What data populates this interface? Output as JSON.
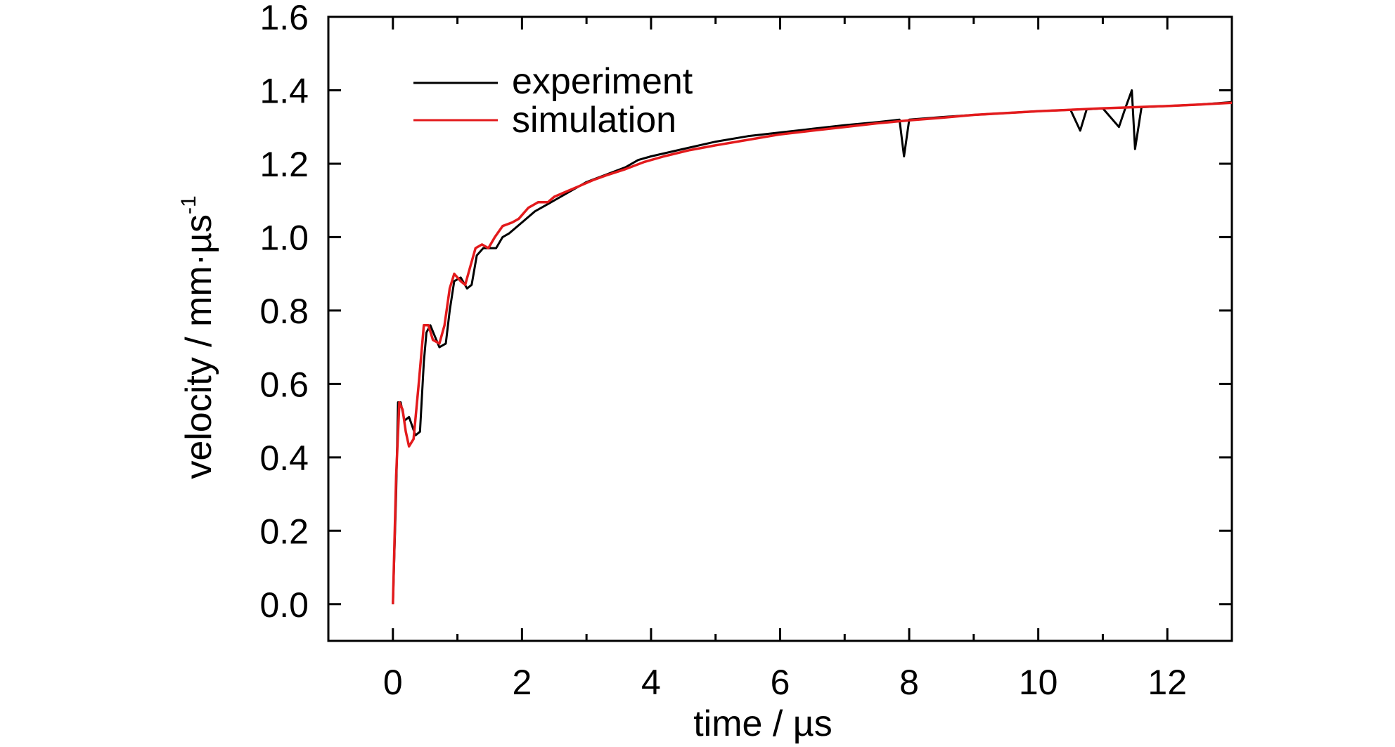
{
  "chart_data": {
    "type": "line",
    "xlabel": "time / µs",
    "ylabel": "velocity / mm·µs",
    "ylabel_superscript": "-1",
    "xlim": [
      -1,
      13
    ],
    "ylim": [
      -0.1,
      1.6
    ],
    "x_ticks": [
      0,
      2,
      4,
      6,
      8,
      10,
      12
    ],
    "x_tick_labels": [
      "0",
      "2",
      "4",
      "6",
      "8",
      "10",
      "12"
    ],
    "y_ticks": [
      0.0,
      0.2,
      0.4,
      0.6,
      0.8,
      1.0,
      1.2,
      1.4,
      1.6
    ],
    "y_tick_labels": [
      "0.0",
      "0.2",
      "0.4",
      "0.6",
      "0.8",
      "1.0",
      "1.2",
      "1.4",
      "1.6"
    ],
    "grid": false,
    "legend": "top-left",
    "series": [
      {
        "name": "experiment",
        "color": "#000000",
        "points": [
          [
            0.0,
            0.0
          ],
          [
            0.05,
            0.3
          ],
          [
            0.08,
            0.55
          ],
          [
            0.12,
            0.55
          ],
          [
            0.18,
            0.5
          ],
          [
            0.25,
            0.51
          ],
          [
            0.35,
            0.46
          ],
          [
            0.42,
            0.47
          ],
          [
            0.48,
            0.66
          ],
          [
            0.52,
            0.74
          ],
          [
            0.58,
            0.76
          ],
          [
            0.65,
            0.73
          ],
          [
            0.72,
            0.7
          ],
          [
            0.82,
            0.71
          ],
          [
            0.88,
            0.8
          ],
          [
            0.95,
            0.88
          ],
          [
            1.05,
            0.89
          ],
          [
            1.15,
            0.86
          ],
          [
            1.22,
            0.87
          ],
          [
            1.3,
            0.95
          ],
          [
            1.4,
            0.97
          ],
          [
            1.5,
            0.97
          ],
          [
            1.6,
            0.97
          ],
          [
            1.7,
            1.0
          ],
          [
            1.8,
            1.01
          ],
          [
            2.0,
            1.04
          ],
          [
            2.2,
            1.07
          ],
          [
            2.4,
            1.09
          ],
          [
            2.6,
            1.11
          ],
          [
            2.8,
            1.13
          ],
          [
            3.0,
            1.15
          ],
          [
            3.3,
            1.17
          ],
          [
            3.6,
            1.19
          ],
          [
            3.8,
            1.21
          ],
          [
            4.0,
            1.22
          ],
          [
            4.5,
            1.24
          ],
          [
            5.0,
            1.26
          ],
          [
            5.5,
            1.275
          ],
          [
            6.0,
            1.285
          ],
          [
            6.5,
            1.295
          ],
          [
            7.0,
            1.305
          ],
          [
            7.5,
            1.313
          ],
          [
            7.85,
            1.32
          ],
          [
            7.92,
            1.22
          ],
          [
            8.0,
            1.32
          ],
          [
            8.5,
            1.327
          ],
          [
            9.0,
            1.333
          ],
          [
            9.5,
            1.338
          ],
          [
            10.0,
            1.343
          ],
          [
            10.5,
            1.347
          ],
          [
            10.65,
            1.29
          ],
          [
            10.75,
            1.348
          ],
          [
            11.0,
            1.351
          ],
          [
            11.25,
            1.3
          ],
          [
            11.35,
            1.352
          ],
          [
            11.45,
            1.4
          ],
          [
            11.5,
            1.24
          ],
          [
            11.6,
            1.354
          ],
          [
            12.0,
            1.357
          ],
          [
            12.5,
            1.361
          ],
          [
            12.8,
            1.365
          ],
          [
            13.0,
            1.368
          ]
        ]
      },
      {
        "name": "simulation",
        "color": "#e31a1c",
        "points": [
          [
            0.0,
            0.0
          ],
          [
            0.05,
            0.35
          ],
          [
            0.1,
            0.55
          ],
          [
            0.15,
            0.53
          ],
          [
            0.2,
            0.47
          ],
          [
            0.25,
            0.43
          ],
          [
            0.32,
            0.45
          ],
          [
            0.4,
            0.6
          ],
          [
            0.48,
            0.76
          ],
          [
            0.55,
            0.76
          ],
          [
            0.62,
            0.72
          ],
          [
            0.72,
            0.71
          ],
          [
            0.8,
            0.76
          ],
          [
            0.88,
            0.86
          ],
          [
            0.95,
            0.9
          ],
          [
            1.05,
            0.88
          ],
          [
            1.12,
            0.87
          ],
          [
            1.2,
            0.92
          ],
          [
            1.28,
            0.97
          ],
          [
            1.38,
            0.98
          ],
          [
            1.48,
            0.97
          ],
          [
            1.58,
            1.0
          ],
          [
            1.7,
            1.03
          ],
          [
            1.85,
            1.04
          ],
          [
            1.95,
            1.05
          ],
          [
            2.1,
            1.08
          ],
          [
            2.25,
            1.095
          ],
          [
            2.4,
            1.095
          ],
          [
            2.5,
            1.11
          ],
          [
            2.7,
            1.125
          ],
          [
            2.9,
            1.14
          ],
          [
            3.1,
            1.155
          ],
          [
            3.3,
            1.168
          ],
          [
            3.6,
            1.185
          ],
          [
            3.9,
            1.205
          ],
          [
            4.2,
            1.22
          ],
          [
            4.6,
            1.237
          ],
          [
            5.0,
            1.25
          ],
          [
            5.5,
            1.265
          ],
          [
            6.0,
            1.28
          ],
          [
            6.5,
            1.29
          ],
          [
            7.0,
            1.3
          ],
          [
            7.5,
            1.31
          ],
          [
            8.0,
            1.318
          ],
          [
            8.5,
            1.325
          ],
          [
            9.0,
            1.333
          ],
          [
            9.5,
            1.338
          ],
          [
            10.0,
            1.343
          ],
          [
            10.5,
            1.347
          ],
          [
            11.0,
            1.351
          ],
          [
            11.5,
            1.354
          ],
          [
            12.0,
            1.357
          ],
          [
            12.5,
            1.361
          ],
          [
            13.0,
            1.366
          ]
        ]
      }
    ]
  }
}
